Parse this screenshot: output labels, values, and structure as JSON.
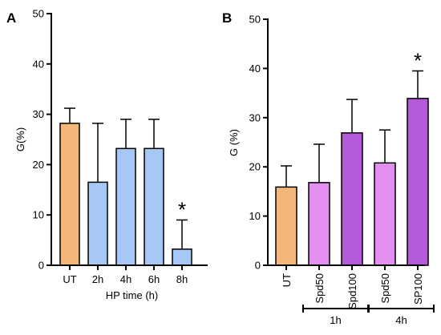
{
  "chart_data": [
    {
      "type": "bar",
      "panel_label": "A",
      "categories": [
        "UT",
        "2h",
        "4h",
        "6h",
        "8h"
      ],
      "values": [
        28.2,
        16.5,
        23.2,
        23.2,
        3.2
      ],
      "errors": [
        3.0,
        11.7,
        5.8,
        5.8,
        5.8
      ],
      "colors": [
        "#F5B67A",
        "#A7C8F4",
        "#A7C8F4",
        "#A7C8F4",
        "#A7C8F4"
      ],
      "significance": [
        "",
        "",
        "",
        "",
        "*"
      ],
      "xlabel": "HP time (h)",
      "ylabel": "G(%)",
      "ylim": [
        0,
        50
      ],
      "yticks": [
        0,
        10,
        20,
        30,
        40,
        50
      ],
      "grid": false
    },
    {
      "type": "bar",
      "panel_label": "B",
      "categories": [
        "UT",
        "Spd50",
        "Spd100",
        "Spd50",
        "SP100"
      ],
      "values": [
        15.9,
        16.8,
        26.9,
        20.8,
        33.9
      ],
      "errors": [
        4.3,
        7.8,
        6.8,
        6.7,
        5.6
      ],
      "colors": [
        "#F5B67A",
        "#E48EF2",
        "#B45AD8",
        "#E48EF2",
        "#B45AD8"
      ],
      "significance": [
        "",
        "",
        "",
        "",
        "*"
      ],
      "groups": [
        {
          "label": "1h",
          "span": [
            1,
            2
          ]
        },
        {
          "label": "4h",
          "span": [
            3,
            4
          ]
        }
      ],
      "xlabel": "",
      "ylabel": "G (%)",
      "ylim": [
        0,
        50
      ],
      "yticks": [
        0,
        10,
        20,
        30,
        40,
        50
      ],
      "grid": false
    }
  ]
}
